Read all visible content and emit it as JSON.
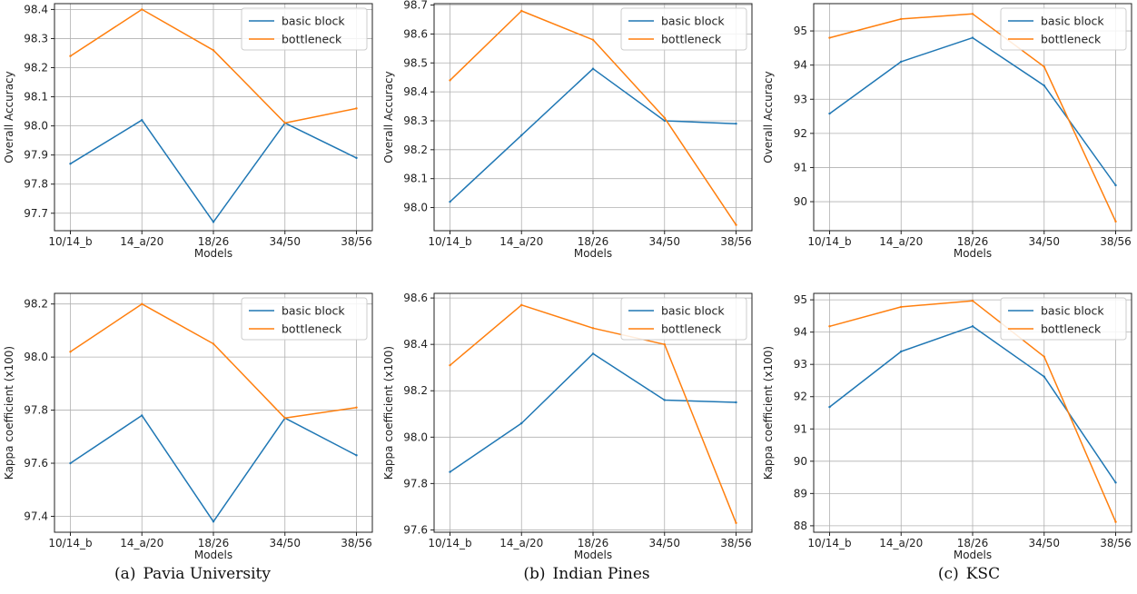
{
  "colors": {
    "basic_block": "#1f77b4",
    "bottleneck": "#ff7f0e",
    "grid": "#b0b0b0"
  },
  "chart_data": [
    {
      "panel": "a",
      "row": "top",
      "type": "line",
      "categories": [
        "10/14_b",
        "14_a/20",
        "18/26",
        "34/50",
        "38/56"
      ],
      "xlabel": "Models",
      "ylabel": "Overall Accuracy",
      "ylim": [
        97.64,
        98.42
      ],
      "yticks": [
        "97.7",
        "97.8",
        "97.9",
        "98.0",
        "98.1",
        "98.2",
        "98.3",
        "98.4"
      ],
      "legend": "top-right",
      "grid": true,
      "series": [
        {
          "name": "basic block",
          "values": [
            97.87,
            98.02,
            97.67,
            98.01,
            97.89
          ]
        },
        {
          "name": "bottleneck",
          "values": [
            98.24,
            98.4,
            98.26,
            98.01,
            98.06
          ]
        }
      ]
    },
    {
      "panel": "b",
      "row": "top",
      "type": "line",
      "categories": [
        "10/14_b",
        "14_a/20",
        "18/26",
        "34/50",
        "38/56"
      ],
      "xlabel": "Models",
      "ylabel": "Overall Accuracy",
      "ylim": [
        97.92,
        98.705
      ],
      "yticks": [
        "98.0",
        "98.1",
        "98.2",
        "98.3",
        "98.4",
        "98.5",
        "98.6",
        "98.7"
      ],
      "legend": "top-right",
      "grid": true,
      "series": [
        {
          "name": "basic block",
          "values": [
            98.02,
            98.25,
            98.48,
            98.3,
            98.29
          ]
        },
        {
          "name": "bottleneck",
          "values": [
            98.44,
            98.68,
            98.58,
            98.31,
            97.94
          ]
        }
      ]
    },
    {
      "panel": "c",
      "row": "top",
      "type": "line",
      "categories": [
        "10/14_b",
        "14_a/20",
        "18/26",
        "34/50",
        "38/56"
      ],
      "xlabel": "Models",
      "ylabel": "Overall Accuracy",
      "ylim": [
        89.15,
        95.8
      ],
      "yticks": [
        "90",
        "91",
        "92",
        "93",
        "94",
        "95"
      ],
      "legend": "top-right",
      "grid": true,
      "series": [
        {
          "name": "basic block",
          "values": [
            92.58,
            94.1,
            94.8,
            93.4,
            90.48
          ]
        },
        {
          "name": "bottleneck",
          "values": [
            94.8,
            95.35,
            95.5,
            93.95,
            89.42
          ]
        }
      ]
    },
    {
      "panel": "a",
      "row": "bottom",
      "type": "line",
      "categories": [
        "10/14_b",
        "14_a/20",
        "18/26",
        "34/50",
        "38/56"
      ],
      "xlabel": "Models",
      "ylabel": "Kappa coefficient (x100)",
      "ylim": [
        97.34,
        98.24
      ],
      "yticks": [
        "97.4",
        "97.6",
        "97.8",
        "98.0",
        "98.2"
      ],
      "legend": "top-right",
      "grid": true,
      "series": [
        {
          "name": "basic block",
          "values": [
            97.6,
            97.78,
            97.38,
            97.77,
            97.63
          ]
        },
        {
          "name": "bottleneck",
          "values": [
            98.02,
            98.2,
            98.05,
            97.77,
            97.81
          ]
        }
      ]
    },
    {
      "panel": "b",
      "row": "bottom",
      "type": "line",
      "categories": [
        "10/14_b",
        "14_a/20",
        "18/26",
        "34/50",
        "38/56"
      ],
      "xlabel": "Models",
      "ylabel": "Kappa coefficient (x100)",
      "ylim": [
        97.59,
        98.62
      ],
      "yticks": [
        "97.6",
        "97.8",
        "98.0",
        "98.2",
        "98.4",
        "98.6"
      ],
      "legend": "top-right",
      "grid": true,
      "series": [
        {
          "name": "basic block",
          "values": [
            97.85,
            98.06,
            98.36,
            98.16,
            98.15
          ]
        },
        {
          "name": "bottleneck",
          "values": [
            98.31,
            98.57,
            98.47,
            98.4,
            97.63
          ]
        }
      ]
    },
    {
      "panel": "c",
      "row": "bottom",
      "type": "line",
      "categories": [
        "10/14_b",
        "14_a/20",
        "18/26",
        "34/50",
        "38/56"
      ],
      "xlabel": "Models",
      "ylabel": "Kappa coefficient (x100)",
      "ylim": [
        87.8,
        95.2
      ],
      "yticks": [
        "88",
        "89",
        "90",
        "91",
        "92",
        "93",
        "94",
        "95"
      ],
      "legend": "top-right",
      "grid": true,
      "series": [
        {
          "name": "basic block",
          "values": [
            91.68,
            93.4,
            94.18,
            92.62,
            89.34
          ]
        },
        {
          "name": "bottleneck",
          "values": [
            94.18,
            94.78,
            94.97,
            93.24,
            88.12
          ]
        }
      ]
    }
  ],
  "captions": [
    {
      "label": "(a)",
      "text": "Pavia University"
    },
    {
      "label": "(b)",
      "text": "Indian Pines"
    },
    {
      "label": "(c)",
      "text": "KSC"
    }
  ]
}
